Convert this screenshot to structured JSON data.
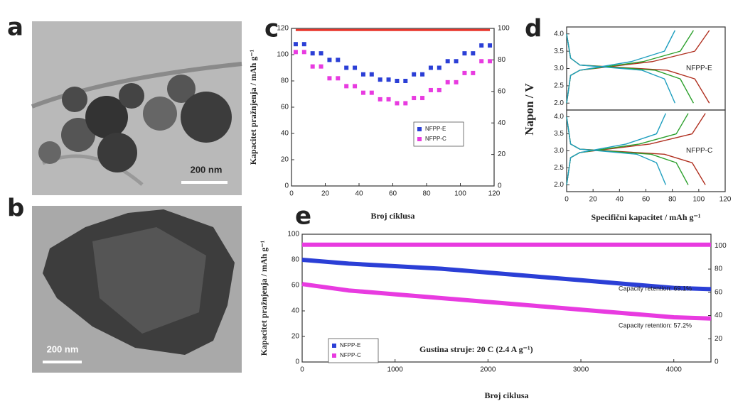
{
  "panels": [
    {
      "label": "a",
      "scale_bar": "200 nm"
    },
    {
      "label": "b",
      "scale_bar": "200 nm"
    }
  ],
  "chart_data": [
    {
      "type": "line",
      "panel_label": "c",
      "x_label": "Broj ciklusa",
      "y_label": "Kapacitet pražnjenja / mAh g⁻¹",
      "xlim": [
        0,
        120
      ],
      "xticks": [
        0,
        20,
        40,
        60,
        80,
        100,
        120
      ],
      "ylim": [
        0,
        120
      ],
      "yticks": [
        0,
        20,
        40,
        60,
        80,
        100,
        120
      ],
      "y2lim": [
        0,
        100
      ],
      "y2ticks": [
        0,
        20,
        40,
        60,
        80,
        100
      ],
      "x": [
        2.5,
        7.5,
        12.5,
        17.5,
        22.5,
        27.5,
        32.5,
        37.5,
        42.5,
        47.5,
        52.5,
        57.5,
        62.5,
        67.5,
        72.5,
        77.5,
        82.5,
        87.5,
        92.5,
        97.5,
        102.5,
        107.5,
        112.5,
        117.5
      ],
      "series": [
        {
          "name": "NFPP-E",
          "color": "#2b3fd6",
          "values": [
            108,
            108,
            101,
            101,
            96,
            96,
            90,
            90,
            85,
            85,
            81,
            81,
            80,
            80,
            85,
            85,
            90,
            90,
            95,
            95,
            101,
            101,
            107,
            107
          ]
        },
        {
          "name": "NFPP-C",
          "color": "#e83be0",
          "values": [
            102,
            102,
            91,
            91,
            82,
            82,
            76,
            76,
            71,
            71,
            66,
            66,
            63,
            63,
            67,
            67,
            73,
            73,
            79,
            79,
            86,
            86,
            95,
            95
          ]
        },
        {
          "color": "#e8342a",
          "axis": "y2",
          "values": [
            99,
            99,
            99,
            99,
            99,
            99,
            99,
            99,
            99,
            99,
            99,
            99,
            99,
            99,
            99,
            99,
            99,
            99,
            99,
            99,
            99,
            99,
            99,
            99
          ]
        }
      ]
    },
    {
      "type": "line",
      "panel_label": "d",
      "x_label": "Specifični kapacitet / mAh g⁻¹",
      "y_label": "Napon / V",
      "xlim": [
        0,
        120
      ],
      "xticks": [
        0,
        20,
        40,
        60,
        80,
        100,
        120
      ],
      "subplots": [
        {
          "label": "NFPP-E",
          "ylim": [
            1.8,
            4.2
          ],
          "yticks": [
            {
              "value": 2,
              "label": "2.0"
            },
            2.5,
            {
              "value": 3,
              "label": "3.0"
            },
            3.5,
            {
              "value": 4,
              "label": "4.0"
            }
          ],
          "series": [
            {
              "color": "#b03020",
              "x": [
                0,
                3,
                10,
                76,
                97,
                108
              ],
              "values": [
                4.0,
                3.3,
                3.1,
                2.95,
                2.7,
                2.0
              ]
            },
            {
              "color": "#b03020",
              "x": [
                0,
                3,
                10,
                65,
                97,
                108
              ],
              "values": [
                2.0,
                2.8,
                2.95,
                3.2,
                3.5,
                4.1
              ]
            },
            {
              "color": "#2ca02c",
              "x": [
                0,
                3,
                10,
                67,
                86,
                96
              ],
              "values": [
                4.0,
                3.3,
                3.1,
                2.95,
                2.7,
                2.0
              ]
            },
            {
              "color": "#2ca02c",
              "x": [
                0,
                3,
                10,
                58,
                86,
                96
              ],
              "values": [
                2.0,
                2.8,
                2.95,
                3.2,
                3.5,
                4.1
              ]
            },
            {
              "color": "#1f9fbf",
              "x": [
                0,
                3,
                10,
                57,
                74,
                82
              ],
              "values": [
                4.0,
                3.3,
                3.1,
                2.95,
                2.7,
                2.0
              ]
            },
            {
              "color": "#1f9fbf",
              "x": [
                0,
                3,
                10,
                49,
                74,
                82
              ],
              "values": [
                2.0,
                2.8,
                2.95,
                3.2,
                3.5,
                4.1
              ]
            }
          ]
        },
        {
          "label": "NFPP-C",
          "ylim": [
            1.8,
            4.2
          ],
          "yticks": [
            {
              "value": 2,
              "label": "2.0"
            },
            2.5,
            {
              "value": 3,
              "label": "3.0"
            },
            3.5,
            {
              "value": 4,
              "label": "4.0"
            }
          ],
          "series": [
            {
              "color": "#b03020",
              "x": [
                0,
                3,
                10,
                74,
                95,
                105
              ],
              "values": [
                4.0,
                3.2,
                3.05,
                2.9,
                2.65,
                2.0
              ]
            },
            {
              "color": "#b03020",
              "x": [
                0,
                3,
                10,
                63,
                95,
                105
              ],
              "values": [
                2.0,
                2.8,
                2.95,
                3.2,
                3.5,
                4.1
              ]
            },
            {
              "color": "#2ca02c",
              "x": [
                0,
                3,
                10,
                64,
                83,
                92
              ],
              "values": [
                4.0,
                3.2,
                3.05,
                2.9,
                2.65,
                2.0
              ]
            },
            {
              "color": "#2ca02c",
              "x": [
                0,
                3,
                10,
                55,
                83,
                92
              ],
              "values": [
                2.0,
                2.8,
                2.95,
                3.2,
                3.5,
                4.1
              ]
            },
            {
              "color": "#1f9fbf",
              "x": [
                0,
                3,
                10,
                53,
                68,
                75
              ],
              "values": [
                4.0,
                3.2,
                3.05,
                2.9,
                2.65,
                2.0
              ]
            },
            {
              "color": "#1f9fbf",
              "x": [
                0,
                3,
                10,
                45,
                68,
                75
              ],
              "values": [
                2.0,
                2.8,
                2.95,
                3.2,
                3.5,
                4.1
              ]
            }
          ]
        }
      ]
    },
    {
      "type": "line",
      "panel_label": "e",
      "x_label": "Broj ciklusa",
      "y_label": "Kapacitet pražnjenja / mAh g⁻¹",
      "xlim": [
        0,
        4400
      ],
      "xticks": [
        0,
        1000,
        2000,
        3000,
        4000
      ],
      "ylim": [
        0,
        100
      ],
      "yticks": [
        0,
        20,
        40,
        60,
        80,
        100
      ],
      "y2lim": [
        0,
        110
      ],
      "y2ticks": [
        0,
        20,
        40,
        60,
        80,
        100
      ],
      "x": [
        0,
        500,
        1000,
        1500,
        2000,
        2500,
        3000,
        3500,
        4000,
        4400
      ],
      "series": [
        {
          "name": "NFPP-E",
          "color": "#2b3fd6",
          "values": [
            80,
            77,
            75,
            73,
            70,
            67,
            64,
            61,
            58,
            57
          ]
        },
        {
          "name": "NFPP-C",
          "color": "#e83be0",
          "values": [
            61,
            56,
            53,
            50,
            47,
            44,
            41,
            38,
            35,
            34
          ]
        },
        {
          "color": "#e83be0",
          "axis": "y2",
          "values": [
            101,
            101,
            101,
            101,
            101,
            101,
            101,
            101,
            101,
            101
          ]
        }
      ],
      "annotations": [
        "Capacity retention: 69.1%",
        "Capacity retention: 57.2%",
        "Gustina struje: 20 C (2.4 A g⁻¹)"
      ]
    }
  ]
}
